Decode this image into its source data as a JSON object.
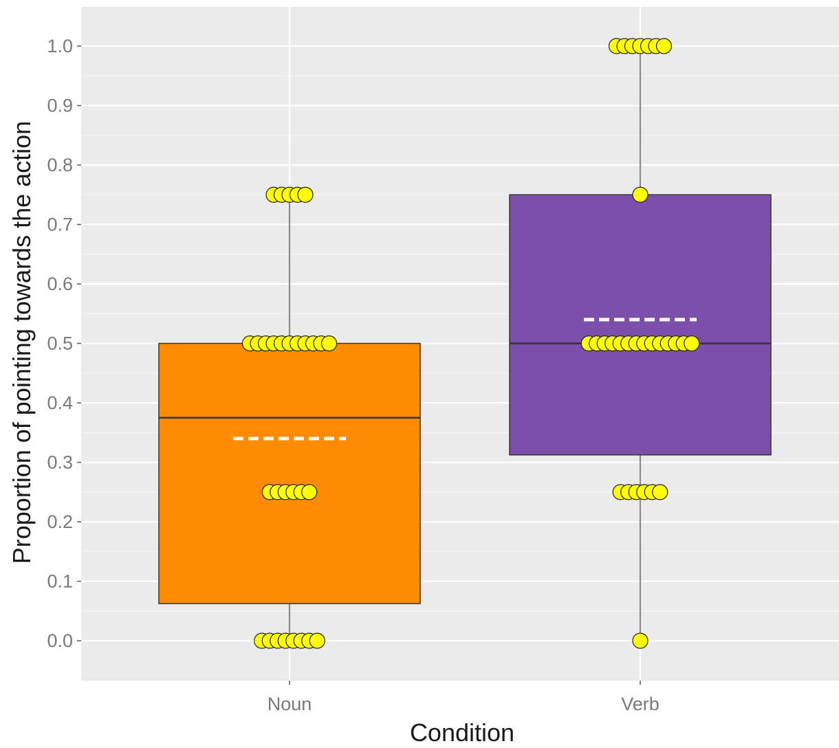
{
  "chart_data": {
    "type": "box",
    "xlabel": "Condition",
    "ylabel": "Proportion of pointing towards the action",
    "ylim": [
      -0.065,
      1.07
    ],
    "yticks": [
      "0.0",
      "0.1",
      "0.2",
      "0.3",
      "0.4",
      "0.5",
      "0.6",
      "0.7",
      "0.8",
      "0.9",
      "1.0"
    ],
    "grid": true,
    "legend": "none",
    "categories": [
      "Noun",
      "Verb"
    ],
    "boxes": [
      {
        "category": "Noun",
        "color": "#FF8C00",
        "q1": 0.0625,
        "median": 0.375,
        "q3": 0.5,
        "whisker_low": 0.0,
        "whisker_high": 0.75,
        "mean": 0.34
      },
      {
        "category": "Verb",
        "color": "#7B4FAB",
        "q1": 0.3125,
        "median": 0.5,
        "q3": 0.75,
        "whisker_low": 0.0,
        "whisker_high": 1.0,
        "mean": 0.54
      }
    ],
    "points": [
      {
        "category": "Noun",
        "y": 0.0,
        "count": 8
      },
      {
        "category": "Noun",
        "y": 0.25,
        "count": 6
      },
      {
        "category": "Noun",
        "y": 0.5,
        "count": 11
      },
      {
        "category": "Noun",
        "y": 0.75,
        "count": 5
      },
      {
        "category": "Verb",
        "y": 0.0,
        "count": 1
      },
      {
        "category": "Verb",
        "y": 0.25,
        "count": 6
      },
      {
        "category": "Verb",
        "y": 0.5,
        "count": 14
      },
      {
        "category": "Verb",
        "y": 0.75,
        "count": 1
      },
      {
        "category": "Verb",
        "y": 1.0,
        "count": 7
      }
    ],
    "point_color": "#FFFF00",
    "mean_line_color": "#FFFFFF",
    "panel_background": "#EBEBEB"
  }
}
